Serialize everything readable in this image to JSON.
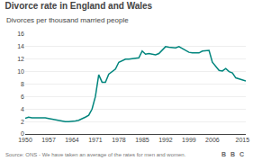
{
  "chart_data": {
    "type": "line",
    "title": "Divorce rate in England and Wales",
    "subtitle": "Divorces per thousand married people",
    "annotations": [
      "Source: ONS - We have taken an average of the rates for men and women.",
      "B",
      "B",
      "C"
    ],
    "x": [
      1950,
      1951,
      1952,
      1953,
      1954,
      1955,
      1956,
      1957,
      1958,
      1959,
      1960,
      1961,
      1962,
      1963,
      1964,
      1965,
      1966,
      1967,
      1968,
      1969,
      1970,
      1971,
      1972,
      1973,
      1974,
      1975,
      1976,
      1977,
      1978,
      1979,
      1980,
      1981,
      1982,
      1983,
      1984,
      1985,
      1986,
      1987,
      1988,
      1989,
      1990,
      1991,
      1992,
      1993,
      1994,
      1995,
      1996,
      1997,
      1998,
      1999,
      2000,
      2001,
      2002,
      2003,
      2004,
      2005,
      2006,
      2007,
      2008,
      2009,
      2010,
      2011,
      2012,
      2013,
      2014,
      2015,
      2016
    ],
    "values": [
      2.5,
      2.7,
      2.6,
      2.6,
      2.7,
      2.7,
      2.6,
      2.5,
      2.4,
      2.2,
      2.1,
      2.1,
      2.0,
      2.0,
      2.0,
      2.1,
      2.2,
      2.4,
      2.7,
      3.0,
      4.0,
      6.0,
      9.5,
      8.3,
      8.3,
      9.6,
      10.0,
      10.4,
      11.5,
      11.8,
      12.0,
      12.0,
      12.1,
      12.2,
      12.2,
      13.3,
      12.8,
      12.9,
      12.8,
      12.7,
      12.9,
      13.4,
      14.0,
      13.9,
      13.8,
      13.8,
      14.0,
      13.7,
      13.4,
      13.1,
      13.0,
      13.0,
      13.0,
      13.3,
      13.3,
      13.4,
      11.5,
      10.8,
      10.2,
      10.1,
      10.5,
      10.0,
      9.8,
      9.0,
      8.8,
      8.6,
      8.5
    ],
    "color": "#00857d",
    "xlim": [
      1950,
      2016
    ],
    "ylim": [
      0,
      16
    ],
    "xticks": [
      1950,
      1957,
      1964,
      1971,
      1978,
      1985,
      1992,
      1999,
      2006,
      2015
    ],
    "yticks": [
      0,
      2,
      4,
      6,
      8,
      10,
      12,
      14,
      16
    ],
    "grid": "y"
  }
}
